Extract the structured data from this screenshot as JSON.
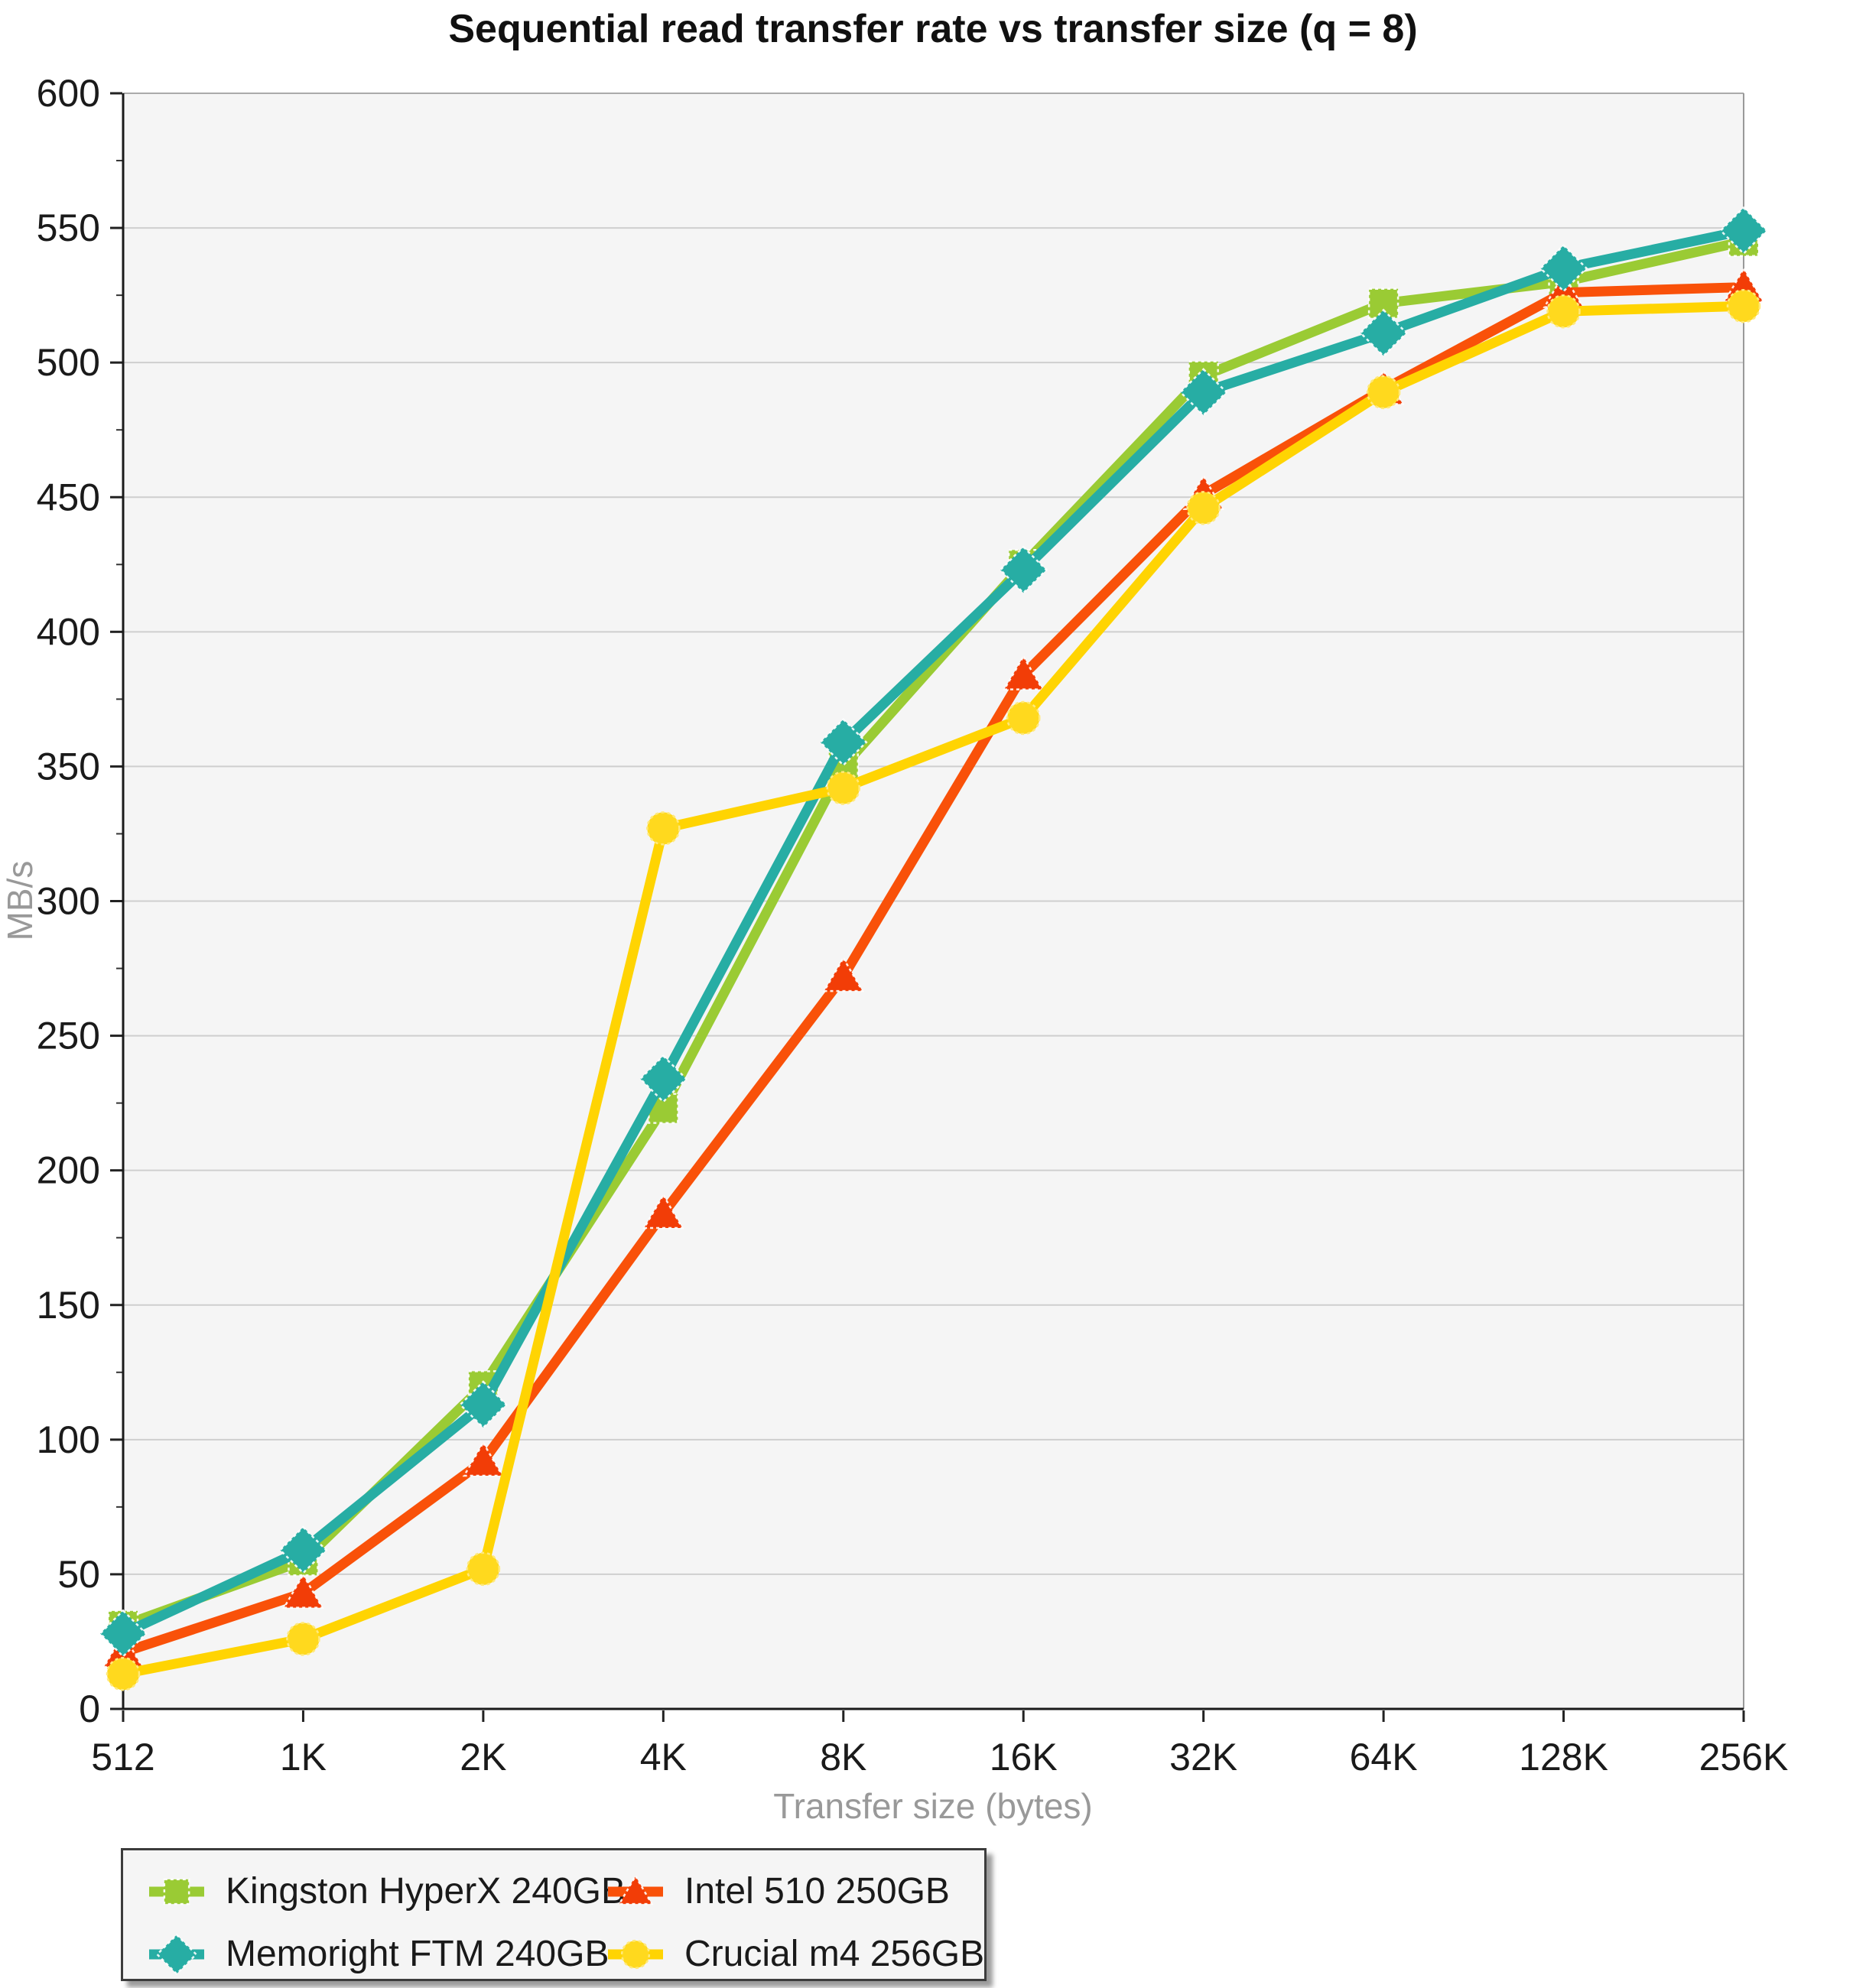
{
  "chart_data": {
    "type": "line",
    "title": "Sequential read transfer rate vs transfer size (q = 8)",
    "xlabel": "Transfer size (bytes)",
    "ylabel": "MB/s",
    "categories": [
      "512",
      "1K",
      "2K",
      "4K",
      "8K",
      "16K",
      "32K",
      "64K",
      "128K",
      "256K"
    ],
    "ylim": [
      0,
      600
    ],
    "ytick_step": 50,
    "grid": true,
    "legend_position": "bottom-left",
    "plot_bg_color": "#f5f5f5",
    "gridline_color": "#cfcfcf",
    "axis_color": "#1a1a1a",
    "series": [
      {
        "name": "Kingston HyperX 240GB",
        "marker": "square",
        "color": "#9ACB34",
        "marker_color": "#9ACB34",
        "values": [
          31,
          55,
          120,
          223,
          350,
          425,
          495,
          522,
          530,
          545
        ]
      },
      {
        "name": "Intel 510 250GB",
        "marker": "triangle",
        "color": "#F95109",
        "marker_color": "#F23D07",
        "values": [
          21,
          43,
          92,
          184,
          272,
          384,
          451,
          490,
          526,
          528
        ]
      },
      {
        "name": "Memoright FTM 240GB",
        "marker": "diamond",
        "color": "#27ADA4",
        "marker_color": "#27ADA4",
        "values": [
          28,
          59,
          113,
          234,
          359,
          423,
          489,
          511,
          535,
          549
        ]
      },
      {
        "name": "Crucial m4 256GB",
        "marker": "circle",
        "color": "#FFD402",
        "marker_color": "#FFD91E",
        "values": [
          13,
          26,
          52,
          327,
          342,
          368,
          446,
          489,
          519,
          521
        ]
      }
    ]
  }
}
